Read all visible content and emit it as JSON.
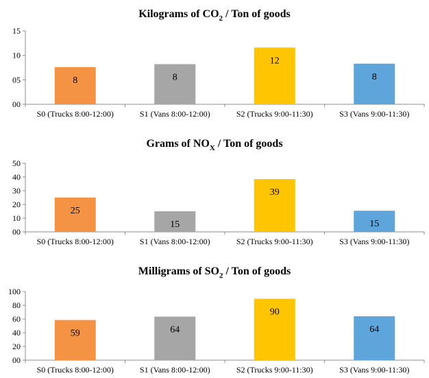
{
  "chart_data": [
    {
      "type": "bar",
      "title": "Kilograms of CO",
      "title_sub": "2",
      "title_rest": " / Ton of goods",
      "categories": [
        "S0 (Trucks 8:00-12:00)",
        "S1 (Vans 8:00-12:00)",
        "S2 (Trucks 9:00-11:30)",
        "S3 (Vans 9:00-11:30)"
      ],
      "values": [
        7.6,
        8.2,
        11.6,
        8.3
      ],
      "data_labels": [
        "8",
        "8",
        "12",
        "8"
      ],
      "yticks": [
        "00",
        "05",
        "10",
        "15"
      ],
      "ylim": [
        0,
        15
      ],
      "colors": [
        "#F39343",
        "#A6A6A6",
        "#FFC600",
        "#5EA5DB"
      ],
      "grid": false
    },
    {
      "type": "bar",
      "title": "Grams of NO",
      "title_sub": "X",
      "title_rest": " / Ton of goods",
      "categories": [
        "S0 (Trucks 8:00-12:00)",
        "S1 (Vans 8:00-12:00)",
        "S2 (Trucks 9:00-11:30)",
        "S3 (Vans 9:00-11:30)"
      ],
      "values": [
        25,
        15,
        38.5,
        15.4
      ],
      "data_labels": [
        "25",
        "15",
        "39",
        "15"
      ],
      "yticks": [
        "00",
        "10",
        "20",
        "30",
        "40",
        "50"
      ],
      "ylim": [
        0,
        50
      ],
      "colors": [
        "#F39343",
        "#A6A6A6",
        "#FFC600",
        "#5EA5DB"
      ],
      "grid": false
    },
    {
      "type": "bar",
      "title": "Milligrams of SO",
      "title_sub": "2",
      "title_rest": " / Ton of goods",
      "categories": [
        "S0 (Trucks 8:00-12:00)",
        "S1 (Vans 8:00-12:00)",
        "S2 (Trucks 9:00-11:30)",
        "S3 (Vans 9:00-11:30)"
      ],
      "values": [
        58.5,
        63.5,
        89.5,
        64
      ],
      "data_labels": [
        "59",
        "64",
        "90",
        "64"
      ],
      "yticks": [
        "00",
        "20",
        "40",
        "60",
        "80",
        "100"
      ],
      "ylim": [
        0,
        100
      ],
      "colors": [
        "#F39343",
        "#A6A6A6",
        "#FFC600",
        "#5EA5DB"
      ],
      "grid": false
    }
  ]
}
